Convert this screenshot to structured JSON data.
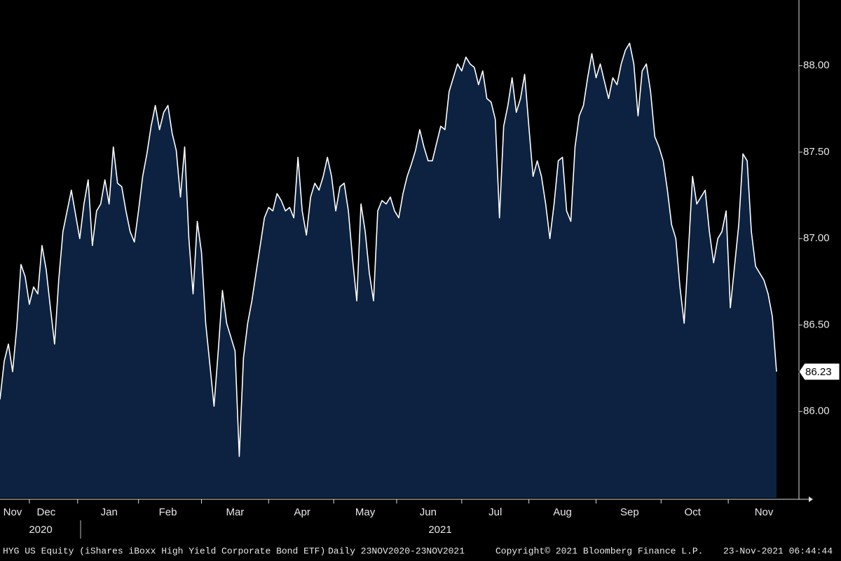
{
  "chart_data": {
    "type": "area",
    "color": "#0c2240",
    "line_color": "#ffffff",
    "values": [
      86.07,
      86.29,
      86.39,
      86.23,
      86.49,
      86.85,
      86.78,
      86.62,
      86.72,
      86.68,
      86.96,
      86.82,
      86.6,
      86.39,
      86.76,
      87.04,
      87.16,
      87.28,
      87.14,
      87.0,
      87.2,
      87.34,
      86.96,
      87.16,
      87.2,
      87.34,
      87.2,
      87.53,
      87.32,
      87.3,
      87.16,
      87.04,
      86.98,
      87.16,
      87.36,
      87.49,
      87.65,
      87.77,
      87.63,
      87.73,
      87.77,
      87.61,
      87.51,
      87.24,
      87.53,
      87.0,
      86.68,
      87.1,
      86.92,
      86.51,
      86.27,
      86.03,
      86.35,
      86.7,
      86.51,
      86.43,
      86.35,
      85.74,
      86.31,
      86.51,
      86.64,
      86.8,
      86.96,
      87.12,
      87.18,
      87.16,
      87.26,
      87.22,
      87.16,
      87.18,
      87.12,
      87.47,
      87.16,
      87.02,
      87.24,
      87.32,
      87.28,
      87.36,
      87.47,
      87.36,
      87.16,
      87.3,
      87.32,
      87.16,
      86.88,
      86.64,
      87.2,
      87.04,
      86.8,
      86.64,
      87.16,
      87.22,
      87.2,
      87.24,
      87.16,
      87.12,
      87.26,
      87.36,
      87.43,
      87.51,
      87.63,
      87.53,
      87.45,
      87.45,
      87.55,
      87.65,
      87.63,
      87.85,
      87.93,
      88.01,
      87.97,
      88.05,
      88.01,
      87.99,
      87.89,
      87.97,
      87.81,
      87.79,
      87.69,
      87.12,
      87.65,
      87.77,
      87.93,
      87.73,
      87.81,
      87.95,
      87.65,
      87.36,
      87.45,
      87.36,
      87.2,
      87.0,
      87.2,
      87.45,
      87.47,
      87.16,
      87.1,
      87.53,
      87.71,
      87.77,
      87.93,
      88.07,
      87.93,
      88.01,
      87.91,
      87.81,
      87.93,
      87.89,
      88.01,
      88.09,
      88.13,
      88.01,
      87.71,
      87.97,
      88.01,
      87.85,
      87.59,
      87.53,
      87.45,
      87.28,
      87.08,
      87.0,
      86.72,
      86.51,
      86.92,
      87.36,
      87.2,
      87.24,
      87.28,
      87.04,
      86.86,
      87.0,
      87.04,
      87.16,
      86.6,
      86.84,
      87.08,
      87.49,
      87.45,
      87.04,
      86.84,
      86.8,
      86.76,
      86.68,
      86.55,
      86.23
    ],
    "categories": [
      null,
      null,
      null,
      "Nov",
      null,
      null,
      null,
      null,
      null,
      null,
      null,
      "Dec",
      null,
      null,
      null,
      null,
      null,
      null,
      null,
      null,
      null,
      null,
      null,
      null,
      null,
      null,
      "Jan",
      null,
      null,
      null,
      null,
      null,
      null,
      null,
      null,
      null,
      null,
      null,
      null,
      null,
      "Feb",
      null,
      null,
      null,
      null,
      null,
      null,
      null,
      null,
      null,
      null,
      null,
      null,
      null,
      null,
      null,
      "Mar",
      null,
      null,
      null,
      null,
      null,
      null,
      null,
      null,
      null,
      null,
      null,
      null,
      null,
      null,
      null,
      "Apr",
      null,
      null,
      null,
      null,
      null,
      null,
      null,
      null,
      null,
      null,
      null,
      null,
      null,
      null,
      "May",
      null,
      null,
      null,
      null,
      null,
      null,
      null,
      null,
      null,
      null,
      null,
      null,
      null,
      null,
      "Jun",
      null,
      null,
      null,
      null,
      null,
      null,
      null,
      null,
      null,
      null,
      null,
      null,
      null,
      null,
      null,
      "Jul",
      null,
      null,
      null,
      null,
      null,
      null,
      null,
      null,
      null,
      null,
      null,
      null,
      null,
      null,
      null,
      "Aug",
      null,
      null,
      null,
      null,
      null,
      null,
      null,
      null,
      null,
      null,
      null,
      null,
      null,
      null,
      null,
      "Sep",
      null,
      null,
      null,
      null,
      null,
      null,
      null,
      null,
      null,
      null,
      null,
      null,
      null,
      null,
      "Oct",
      null,
      null,
      null,
      null,
      null,
      null,
      null,
      null,
      null,
      null,
      null,
      null,
      null,
      null,
      null,
      null,
      "Nov",
      null,
      null,
      null
    ],
    "year_labels": [
      "2020",
      "2021"
    ],
    "ylim": [
      85.5,
      88.38
    ],
    "yticks": [
      {
        "value": 86,
        "label": "86.00"
      },
      {
        "value": 86.5,
        "label": "86.50"
      },
      {
        "value": 87,
        "label": "87.00"
      },
      {
        "value": 87.5,
        "label": "87.50"
      },
      {
        "value": 88,
        "label": "88.00"
      }
    ],
    "last_price": {
      "value": 86.23,
      "label": "86.23"
    },
    "footer": [
      "HYG US Equity (iShares iBoxx High Yield Corporate Bond ETF)",
      "Daily 23NOV2020-23NOV2021",
      "Copyright© 2021 Bloomberg Finance L.P.",
      "23-Nov-2021 06:44:44"
    ]
  }
}
